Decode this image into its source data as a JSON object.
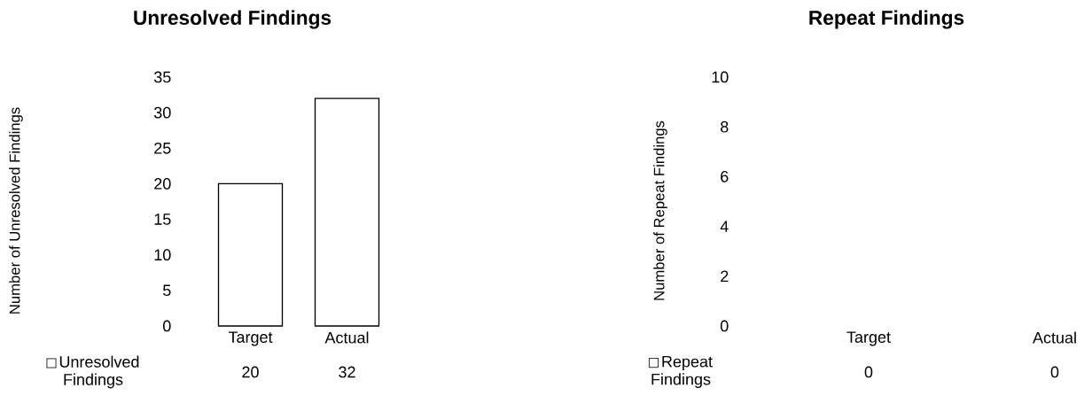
{
  "chart_data": [
    {
      "type": "bar",
      "title": "Unresolved Findings",
      "ylabel": "Number of Unresolved Findings",
      "categories": [
        "Target",
        "Actual"
      ],
      "series": [
        {
          "name": "Unresolved Findings",
          "color": "#ffffff",
          "values": [
            20,
            32
          ]
        }
      ],
      "ylim": [
        0,
        35
      ],
      "yticks": [
        0,
        5,
        10,
        15,
        20,
        25,
        30,
        35
      ],
      "data_labels": true
    },
    {
      "type": "bar",
      "title": "Repeat Findings",
      "ylabel": "Number of Repeat Findings",
      "categories": [
        "Target",
        "Actual"
      ],
      "series": [
        {
          "name": "Repeat Findings",
          "values": [
            0,
            0
          ]
        }
      ],
      "ylim": [
        0,
        10
      ],
      "yticks": [
        0,
        2,
        4,
        6,
        8,
        10
      ],
      "data_labels": true
    }
  ]
}
